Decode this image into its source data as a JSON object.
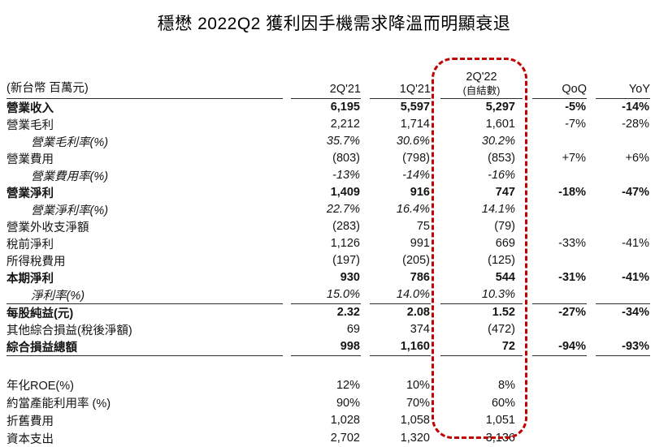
{
  "title": "穩懋 2022Q2 獲利因手機需求降溫而明顯衰退",
  "highlight_color": "#c00000",
  "table": {
    "unit_label": "(新台幣 百萬元)",
    "columns": [
      "2Q'21",
      "1Q'21",
      "2Q'22",
      "QoQ",
      "YoY"
    ],
    "highlight_sub": "(自結數)",
    "rows": [
      {
        "label": "營業收入",
        "style": "bold",
        "values": [
          "6,195",
          "5,597",
          "5,297",
          "-5%",
          "-14%"
        ]
      },
      {
        "label": "營業毛利",
        "style": "normal",
        "values": [
          "2,212",
          "1,714",
          "1,601",
          "-7%",
          "-28%"
        ]
      },
      {
        "label": "營業毛利率(%)",
        "style": "sub",
        "values": [
          "35.7%",
          "30.6%",
          "30.2%",
          "",
          ""
        ]
      },
      {
        "label": "營業費用",
        "style": "normal",
        "values": [
          "(803)",
          "(798)",
          "(853)",
          "+7%",
          "+6%"
        ]
      },
      {
        "label": "營業費用率(%)",
        "style": "sub",
        "values": [
          "-13%",
          "-14%",
          "-16%",
          "",
          ""
        ]
      },
      {
        "label": "營業淨利",
        "style": "bold",
        "values": [
          "1,409",
          "916",
          "747",
          "-18%",
          "-47%"
        ]
      },
      {
        "label": "營業淨利率(%)",
        "style": "sub",
        "values": [
          "22.7%",
          "16.4%",
          "14.1%",
          "",
          ""
        ]
      },
      {
        "label": "營業外收支淨額",
        "style": "normal",
        "values": [
          "(283)",
          "75",
          "(79)",
          "",
          ""
        ]
      },
      {
        "label": "稅前淨利",
        "style": "normal",
        "values": [
          "1,126",
          "991",
          "669",
          "-33%",
          "-41%"
        ]
      },
      {
        "label": "所得稅費用",
        "style": "normal",
        "values": [
          "(197)",
          "(205)",
          "(125)",
          "",
          ""
        ]
      },
      {
        "label": "本期淨利",
        "style": "bold",
        "values": [
          "930",
          "786",
          "544",
          "-31%",
          "-41%"
        ]
      },
      {
        "label": "淨利率(%)",
        "style": "sub",
        "border_bottom": true,
        "values": [
          "15.0%",
          "14.0%",
          "10.3%",
          "",
          ""
        ]
      },
      {
        "label": "每股純益(元)",
        "style": "bold",
        "values": [
          "2.32",
          "2.08",
          "1.52",
          "-27%",
          "-34%"
        ]
      },
      {
        "label": "其他綜合損益(稅後淨額)",
        "style": "normal",
        "values": [
          "69",
          "374",
          "(472)",
          "",
          ""
        ]
      },
      {
        "label": "綜合損益總額",
        "style": "bold",
        "border_bottom": true,
        "values": [
          "998",
          "1,160",
          "72",
          "-94%",
          "-93%"
        ]
      },
      {
        "label": "",
        "style": "spacer",
        "values": [
          "",
          "",
          "",
          "",
          ""
        ]
      },
      {
        "label": "年化ROE(%)",
        "style": "normal",
        "values": [
          "12%",
          "10%",
          "8%",
          "",
          ""
        ]
      },
      {
        "label": "約當產能利用率 (%)",
        "style": "normal",
        "values": [
          "90%",
          "70%",
          "60%",
          "",
          ""
        ]
      },
      {
        "label": "折舊費用",
        "style": "normal",
        "values": [
          "1,028",
          "1,058",
          "1,051",
          "",
          ""
        ]
      },
      {
        "label": "資本支出",
        "style": "normal",
        "values": [
          "2,702",
          "1,320",
          "3,136",
          "",
          ""
        ]
      }
    ]
  }
}
